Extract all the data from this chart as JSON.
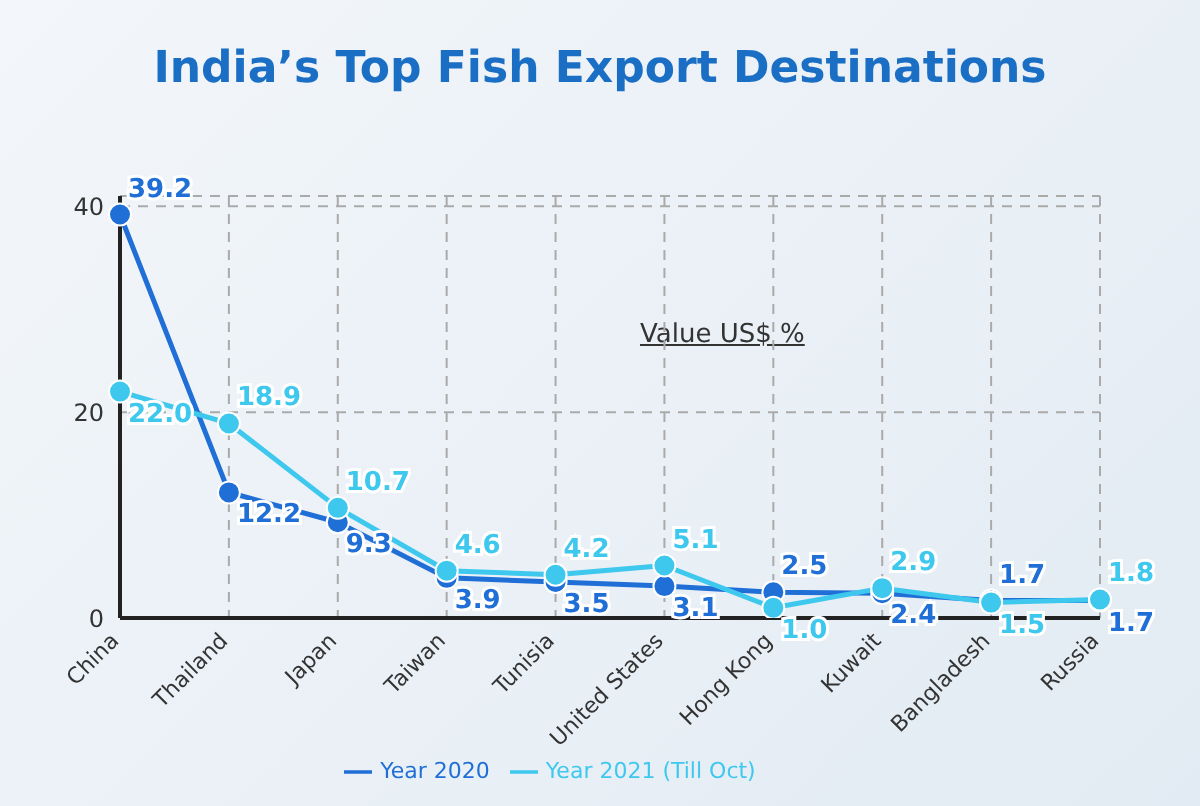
{
  "chart_data": {
    "type": "line",
    "title": "India’s Top Fish Export Destinations",
    "categories": [
      "China",
      "Thailand",
      "Japan",
      "Taiwan",
      "Tunisia",
      "United States",
      "Hong Kong",
      "Kuwait",
      "Bangladesh",
      "Russia"
    ],
    "series": [
      {
        "name": "Year 2020",
        "color": "#1f6fd6",
        "values": [
          39.2,
          12.2,
          9.3,
          3.9,
          3.5,
          3.1,
          2.5,
          2.4,
          1.7,
          1.7
        ],
        "value_labels": [
          "39.2",
          "12.2",
          "9.3",
          "3.9",
          "3.5",
          "3.1",
          "2.5",
          "2.4",
          "1.7",
          "1.7"
        ]
      },
      {
        "name": "Year 2021 (Till Oct)",
        "color": "#3ec8ee",
        "values": [
          22.0,
          18.9,
          10.7,
          4.6,
          4.2,
          5.1,
          1.0,
          2.9,
          1.5,
          1.8
        ],
        "value_labels": [
          "22.0",
          "18.9",
          "10.7",
          "4.6",
          "4.2",
          "5.1",
          "1.0",
          "2.9",
          "1.5",
          "1.8"
        ]
      }
    ],
    "ylim": [
      0,
      41
    ],
    "yticks": [
      0,
      20,
      40
    ],
    "grid": true,
    "legend": "bottom",
    "marker": "circle",
    "line_style": "solid",
    "annotations": [
      "Value US$ %"
    ]
  }
}
